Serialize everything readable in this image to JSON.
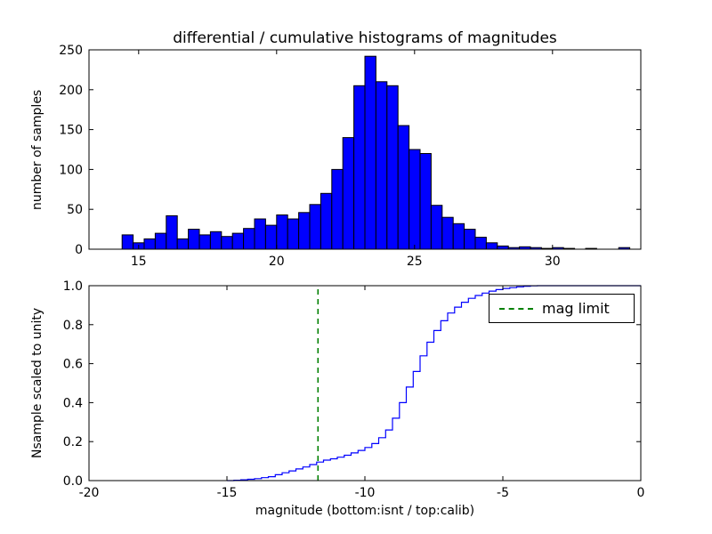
{
  "figure": {
    "background": "#ffffff",
    "axis_color": "#000000"
  },
  "chart_data": [
    {
      "type": "bar",
      "subtype": "histogram",
      "title": "differential / cumulative histograms of magnitudes",
      "xlabel": "",
      "ylabel": "number of samples",
      "xlim": [
        13.2,
        33.2
      ],
      "ylim": [
        0,
        250
      ],
      "xticks": [
        15,
        20,
        25,
        30
      ],
      "xtick_labels": [
        "15",
        "20",
        "25",
        "30"
      ],
      "yticks": [
        0,
        50,
        100,
        150,
        200,
        250
      ],
      "ytick_labels": [
        "0",
        "50",
        "100",
        "150",
        "200",
        "250"
      ],
      "bin_start": 14.4,
      "bin_width": 0.4,
      "counts": [
        18,
        8,
        13,
        20,
        42,
        13,
        25,
        18,
        22,
        16,
        20,
        26,
        38,
        30,
        43,
        38,
        46,
        56,
        70,
        100,
        140,
        205,
        242,
        210,
        205,
        155,
        125,
        120,
        55,
        40,
        32,
        25,
        15,
        8,
        4,
        2,
        3,
        2,
        1,
        2,
        1,
        0,
        1,
        0,
        0,
        2,
        0
      ],
      "bar_color": "#0000ff",
      "bar_edge_color": "#000000",
      "grid": false
    },
    {
      "type": "line",
      "subtype": "cumulative-step",
      "title": "",
      "xlabel": "magnitude (bottom:isnt / top:calib)",
      "ylabel": "Nsample scaled to unity",
      "xlim": [
        -20,
        0
      ],
      "ylim": [
        0,
        1
      ],
      "xticks": [
        -20,
        -15,
        -10,
        -5,
        0
      ],
      "xtick_labels": [
        "-20",
        "-15",
        "-10",
        "-5",
        "0"
      ],
      "yticks": [
        0,
        0.2,
        0.4,
        0.6,
        0.8,
        1
      ],
      "ytick_labels": [
        "0.0",
        "0.2",
        "0.4",
        "0.6",
        "0.8",
        "1.0"
      ],
      "line_color": "#0000ff",
      "steps": {
        "x": [
          -15.0,
          -14.75,
          -14.5,
          -14.25,
          -14.0,
          -13.75,
          -13.5,
          -13.25,
          -13.0,
          -12.75,
          -12.5,
          -12.25,
          -12.0,
          -11.75,
          -11.5,
          -11.25,
          -11.0,
          -10.75,
          -10.5,
          -10.25,
          -10.0,
          -9.75,
          -9.5,
          -9.25,
          -9.0,
          -8.75,
          -8.5,
          -8.25,
          -8.0,
          -7.75,
          -7.5,
          -7.25,
          -7.0,
          -6.75,
          -6.5,
          -6.25,
          -6.0,
          -5.75,
          -5.5,
          -5.25,
          -5.0,
          -4.75,
          -4.5,
          -4.25,
          -4.0,
          -3.75,
          -3.5
        ],
        "y": [
          0.0,
          0.002,
          0.004,
          0.007,
          0.01,
          0.015,
          0.02,
          0.03,
          0.04,
          0.05,
          0.06,
          0.07,
          0.082,
          0.095,
          0.105,
          0.112,
          0.12,
          0.13,
          0.142,
          0.155,
          0.17,
          0.19,
          0.22,
          0.26,
          0.32,
          0.4,
          0.48,
          0.56,
          0.64,
          0.71,
          0.77,
          0.82,
          0.86,
          0.89,
          0.915,
          0.935,
          0.95,
          0.962,
          0.972,
          0.98,
          0.986,
          0.99,
          0.994,
          0.997,
          0.999,
          1.0,
          1.0
        ]
      },
      "mag_limit": {
        "x": -11.7,
        "color": "#008000",
        "linestyle": "dashed"
      },
      "legend": {
        "label": "mag limit",
        "position": "upper right"
      },
      "grid": false
    }
  ]
}
